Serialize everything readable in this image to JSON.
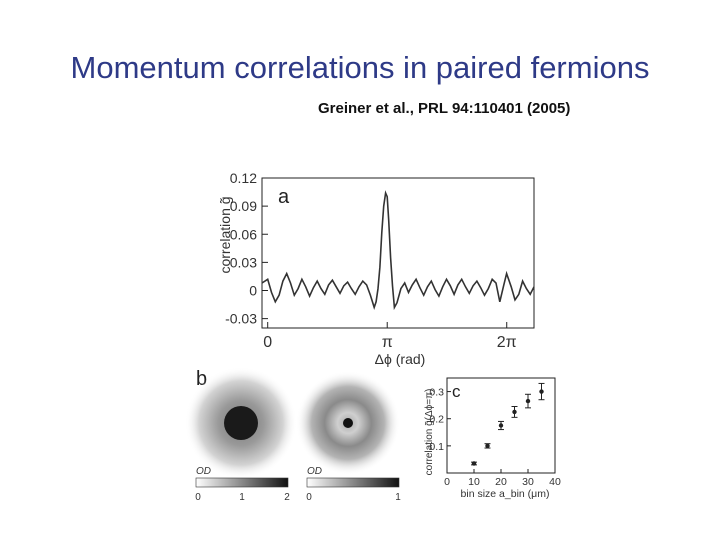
{
  "slide": {
    "title": "Momentum correlations in paired fermions",
    "citation": "Greiner et al., PRL 94:110401 (2005)"
  },
  "figure": {
    "panel_a": {
      "letter": "a",
      "ylabel": "correlation g̃",
      "xlabel": "Δϕ (rad)"
    },
    "panel_b": {
      "letter": "b",
      "colorbar1": {
        "label": "OD",
        "ticks": [
          "0",
          "1",
          "2"
        ]
      },
      "colorbar2": {
        "label": "OD",
        "ticks": [
          "0",
          "1"
        ]
      }
    },
    "panel_c": {
      "letter": "c",
      "ylabel": "correlation g̃(Δϕ=π)",
      "xlabel": "bin size a_bin (μm)"
    }
  },
  "chart_data": [
    {
      "type": "line",
      "panel": "a",
      "xlabel": "Δϕ (rad)",
      "ylabel": "correlation g̃",
      "xlim": [
        -0.15,
        7.0
      ],
      "ylim": [
        -0.04,
        0.12
      ],
      "x_ticks": [
        {
          "value": 0,
          "label": "0"
        },
        {
          "value": 3.1416,
          "label": "π"
        },
        {
          "value": 6.2832,
          "label": "2π"
        }
      ],
      "y_ticks": [
        {
          "value": 0.12,
          "label": "0.12"
        },
        {
          "value": 0.09,
          "label": "0.09"
        },
        {
          "value": 0.06,
          "label": "0.06"
        },
        {
          "value": 0.03,
          "label": "0.03"
        },
        {
          "value": 0,
          "label": "0"
        },
        {
          "value": -0.03,
          "label": "-0.03"
        }
      ],
      "series": [
        {
          "x": [
            -0.15,
            0.0,
            0.1,
            0.2,
            0.3,
            0.4,
            0.5,
            0.6,
            0.7,
            0.8,
            0.9,
            1.0,
            1.1,
            1.2,
            1.3,
            1.4,
            1.5,
            1.6,
            1.7,
            1.8,
            1.9,
            2.0,
            2.1,
            2.2,
            2.3,
            2.4,
            2.5,
            2.6,
            2.7,
            2.8,
            2.85,
            2.9,
            2.95,
            3.0,
            3.05,
            3.1,
            3.14,
            3.18,
            3.23,
            3.28,
            3.33,
            3.4,
            3.5,
            3.6,
            3.7,
            3.8,
            3.9,
            4.0,
            4.1,
            4.2,
            4.3,
            4.4,
            4.5,
            4.6,
            4.7,
            4.8,
            4.9,
            5.0,
            5.1,
            5.2,
            5.3,
            5.4,
            5.5,
            5.6,
            5.7,
            5.8,
            5.9,
            6.0,
            6.1,
            6.2,
            6.28,
            6.4,
            6.5,
            6.6,
            6.7,
            6.8,
            6.9,
            7.0
          ],
          "y": [
            0.008,
            0.012,
            -0.002,
            -0.012,
            -0.005,
            0.01,
            0.018,
            0.008,
            -0.005,
            0.002,
            0.012,
            0.004,
            -0.006,
            0.003,
            0.01,
            0.002,
            -0.004,
            0.006,
            0.011,
            0.004,
            -0.003,
            0.005,
            0.009,
            0.002,
            -0.004,
            0.004,
            0.01,
            0.006,
            -0.005,
            -0.018,
            -0.012,
            0.002,
            0.025,
            0.062,
            0.09,
            0.104,
            0.1,
            0.075,
            0.035,
            0.005,
            -0.018,
            -0.013,
            0.002,
            0.008,
            -0.002,
            0.006,
            0.012,
            0.003,
            -0.005,
            0.004,
            0.01,
            0.001,
            -0.006,
            0.004,
            0.012,
            0.005,
            -0.004,
            0.006,
            0.012,
            0.004,
            -0.003,
            0.005,
            0.01,
            0.003,
            -0.005,
            0.002,
            0.012,
            0.008,
            -0.012,
            0.005,
            0.018,
            0.004,
            -0.01,
            -0.004,
            0.01,
            0.002,
            -0.004,
            0.004
          ]
        }
      ]
    },
    {
      "type": "scatter",
      "panel": "c",
      "xlabel": "bin size a_bin (μm)",
      "ylabel": "correlation g̃(Δϕ=π)",
      "xlim": [
        0,
        40
      ],
      "ylim": [
        0,
        0.35
      ],
      "x_ticks": [
        0,
        10,
        20,
        30,
        40
      ],
      "y_ticks": [
        0.1,
        0.2,
        0.3
      ],
      "series": [
        {
          "x": [
            10,
            15,
            20,
            25,
            30,
            35
          ],
          "y": [
            0.035,
            0.1,
            0.175,
            0.225,
            0.265,
            0.3
          ],
          "err": [
            0.005,
            0.008,
            0.015,
            0.02,
            0.025,
            0.03
          ]
        }
      ]
    }
  ]
}
